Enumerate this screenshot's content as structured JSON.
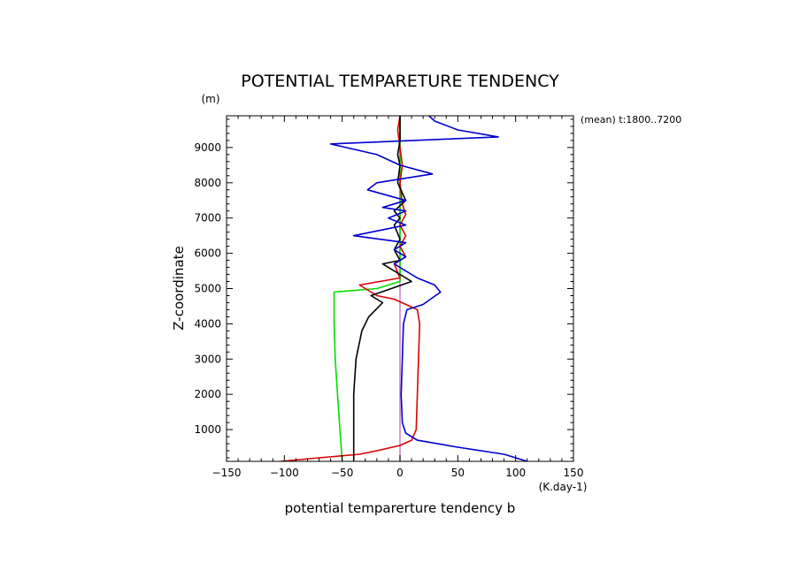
{
  "chart_data": {
    "type": "line",
    "title": "POTENTIAL TEMPARETURE TENDENCY",
    "subtitle": "(mean) t:1800..7200",
    "xlabel": "potential temparerture tendency b",
    "xunits": "(K.day-1)",
    "ylabel": "Z-coordinate",
    "yunits": "(m)",
    "xlim": [
      -150,
      150
    ],
    "ylim": [
      100,
      9900
    ],
    "xticks": [
      -150,
      -100,
      -50,
      0,
      50,
      100,
      150
    ],
    "yticks": [
      1000,
      2000,
      3000,
      4000,
      5000,
      6000,
      7000,
      8000,
      9000
    ],
    "grid": false,
    "series": [
      {
        "color": "#0000cc",
        "points": [
          [
            110,
            100
          ],
          [
            90,
            300
          ],
          [
            50,
            500
          ],
          [
            15,
            700
          ],
          [
            5,
            900
          ],
          [
            2,
            1200
          ],
          [
            1,
            2000
          ],
          [
            2,
            3000
          ],
          [
            3,
            4000
          ],
          [
            6,
            4400
          ],
          [
            20,
            4550
          ],
          [
            35,
            4900
          ],
          [
            30,
            5100
          ],
          [
            15,
            5300
          ],
          [
            5,
            5500
          ],
          [
            -5,
            5700
          ],
          [
            5,
            5900
          ],
          [
            -5,
            6100
          ],
          [
            5,
            6300
          ],
          [
            -40,
            6500
          ],
          [
            5,
            6800
          ],
          [
            -10,
            7000
          ],
          [
            5,
            7200
          ],
          [
            -15,
            7300
          ],
          [
            5,
            7500
          ],
          [
            -28,
            7800
          ],
          [
            -20,
            8000
          ],
          [
            28,
            8250
          ],
          [
            0,
            8500
          ],
          [
            -20,
            8800
          ],
          [
            -60,
            9100
          ],
          [
            85,
            9300
          ],
          [
            50,
            9500
          ],
          [
            30,
            9750
          ],
          [
            25,
            9900
          ]
        ]
      },
      {
        "color": "#000000",
        "points": [
          [
            -40,
            100
          ],
          [
            -40,
            700
          ],
          [
            -40,
            1200
          ],
          [
            -40,
            2000
          ],
          [
            -38,
            3000
          ],
          [
            -33,
            3800
          ],
          [
            -27,
            4200
          ],
          [
            -15,
            4600
          ],
          [
            -25,
            4800
          ],
          [
            10,
            5200
          ],
          [
            -15,
            5700
          ],
          [
            0,
            5800
          ],
          [
            -5,
            6100
          ],
          [
            0,
            6400
          ],
          [
            -5,
            6800
          ],
          [
            0,
            7000
          ],
          [
            -5,
            7200
          ],
          [
            5,
            7500
          ],
          [
            -2,
            8000
          ],
          [
            0,
            8500
          ],
          [
            -2,
            8800
          ],
          [
            0,
            9200
          ],
          [
            0,
            9900
          ]
        ]
      },
      {
        "color": "#dd0000",
        "points": [
          [
            -103,
            100
          ],
          [
            -70,
            200
          ],
          [
            -35,
            300
          ],
          [
            -20,
            400
          ],
          [
            0,
            550
          ],
          [
            10,
            700
          ],
          [
            14,
            1000
          ],
          [
            15,
            2000
          ],
          [
            16,
            3000
          ],
          [
            17,
            4000
          ],
          [
            15,
            4400
          ],
          [
            -5,
            4700
          ],
          [
            -20,
            4800
          ],
          [
            -35,
            5100
          ],
          [
            0,
            5300
          ],
          [
            -5,
            5700
          ],
          [
            5,
            5900
          ],
          [
            0,
            6200
          ],
          [
            5,
            6500
          ],
          [
            0,
            6800
          ],
          [
            5,
            7100
          ],
          [
            2,
            7400
          ],
          [
            0,
            8000
          ],
          [
            2,
            8500
          ],
          [
            0,
            9000
          ],
          [
            -2,
            9500
          ],
          [
            0,
            9900
          ]
        ]
      },
      {
        "color": "#00dd00",
        "points": [
          [
            -50,
            100
          ],
          [
            -52,
            1000
          ],
          [
            -54,
            2000
          ],
          [
            -56,
            3000
          ],
          [
            -57,
            4000
          ],
          [
            -57,
            4900
          ],
          [
            -20,
            5000
          ],
          [
            0,
            5200
          ],
          [
            0,
            6000
          ],
          [
            0,
            7000
          ],
          [
            0,
            8000
          ],
          [
            0,
            9000
          ],
          [
            0,
            9900
          ]
        ]
      },
      {
        "color": "#cc88cc",
        "points": [
          [
            0,
            100
          ],
          [
            0,
            9900
          ]
        ]
      }
    ]
  }
}
